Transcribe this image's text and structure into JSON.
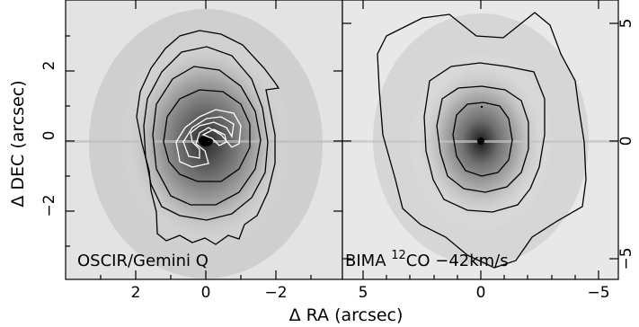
{
  "figure": {
    "x_axis_label": "Δ RA (arcsec)",
    "y_axis_label": "Δ DEC (arcsec)"
  },
  "left_panel": {
    "label": "OSCIR/Gemini Q",
    "x_ticks": [
      "2",
      "0",
      "−2"
    ],
    "y_ticks": [
      "2",
      "0",
      "−2"
    ]
  },
  "right_panel": {
    "label_prefix": "BIMA ",
    "label_superscript": "12",
    "label_suffix": "CO −42km/s",
    "x_ticks": [
      "5",
      "0",
      "−5"
    ],
    "y_ticks_right": [
      "5",
      "0",
      "−5"
    ]
  },
  "colors": {
    "frame": "#000000",
    "contour_dark": "#000000",
    "contour_light": "#ffffff",
    "background": "#ffffff"
  }
}
